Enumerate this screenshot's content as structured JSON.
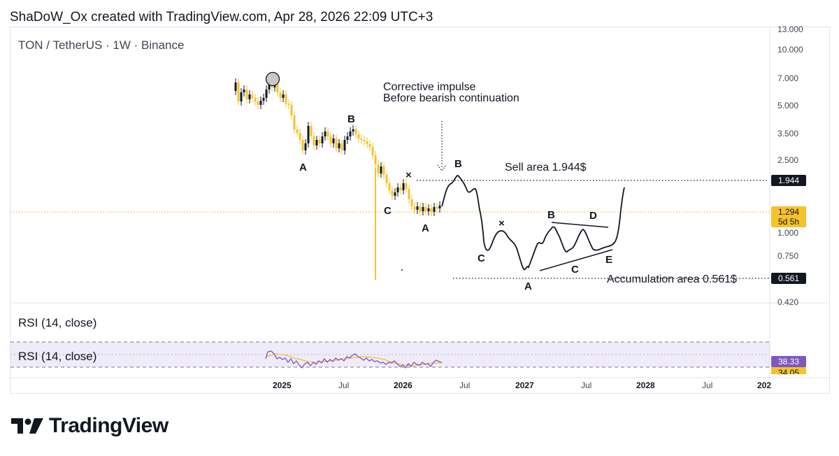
{
  "header": {
    "text": "ShaDoW_Ox created with TradingView.com, Apr 28, 2026 22:09 UTC+3"
  },
  "symbol": {
    "text": "TON / TetherUS · 1W · Binance"
  },
  "annotations": {
    "corrective_line1": "Corrective impulse",
    "corrective_line2": "Before bearish continuation",
    "sell_area": "Sell area 1.944$",
    "accumulation_area": "Accumulation area 0.561$"
  },
  "price_tags": {
    "sell": {
      "value": "1.944",
      "bg": "#131722",
      "fg": "#ffffff"
    },
    "current": {
      "value": "1.294",
      "countdown": "5d 5h",
      "bg": "#f5c22c",
      "fg": "#131722"
    },
    "accumulation": {
      "value": "0.561",
      "bg": "#131722",
      "fg": "#ffffff"
    }
  },
  "rsi": {
    "title": "RSI (14, close)",
    "inline_label": "RSI (14, close)",
    "value": "38.33",
    "ma_value": "34.05",
    "rsi_color": "#7e57c2",
    "ma_color": "#f5c22c"
  },
  "wave_labels": [
    "A",
    "B",
    "C",
    "A",
    "B",
    "C",
    "A",
    "B",
    "C",
    "D",
    "E"
  ],
  "brand": {
    "name": "TradingView"
  },
  "chart_data": {
    "type": "candlestick",
    "title": "TON / TetherUS · 1W · Binance",
    "y_scale": "log",
    "y_ticks": [
      "13.000",
      "10.000",
      "7.000",
      "5.000",
      "3.500",
      "2.500",
      "1.000",
      "0.750",
      "0.420"
    ],
    "x_ticks": [
      "2025",
      "Jul",
      "2026",
      "Jul",
      "2027",
      "Jul",
      "2028",
      "Jul",
      "202"
    ],
    "x_ticks_bold": [
      "2025",
      "2026",
      "2027",
      "2028"
    ],
    "levels": {
      "sell_area": 1.944,
      "current_price": 1.294,
      "accumulation_area": 0.561
    },
    "projection_path": [
      {
        "date": "2026-04",
        "price": 1.29
      },
      {
        "date": "2026-05",
        "price": 1.55
      },
      {
        "date": "2026-06",
        "price": 2.0
      },
      {
        "date": "2026-07",
        "price": 1.55
      },
      {
        "date": "2026-08",
        "price": 1.05
      },
      {
        "date": "2026-09",
        "price": 1.08
      },
      {
        "date": "2026-10",
        "price": 0.85
      },
      {
        "date": "2026-11",
        "price": 0.62
      },
      {
        "date": "2026-12",
        "price": 0.6
      },
      {
        "date": "2027-02",
        "price": 0.95
      },
      {
        "date": "2027-04",
        "price": 0.8
      },
      {
        "date": "2027-05",
        "price": 1.0
      },
      {
        "date": "2027-07",
        "price": 0.84
      },
      {
        "date": "2027-09",
        "price": 1.05
      },
      {
        "date": "2027-10",
        "price": 0.9
      },
      {
        "date": "2027-11",
        "price": 1.9
      }
    ],
    "grid": false,
    "legend": "none"
  }
}
